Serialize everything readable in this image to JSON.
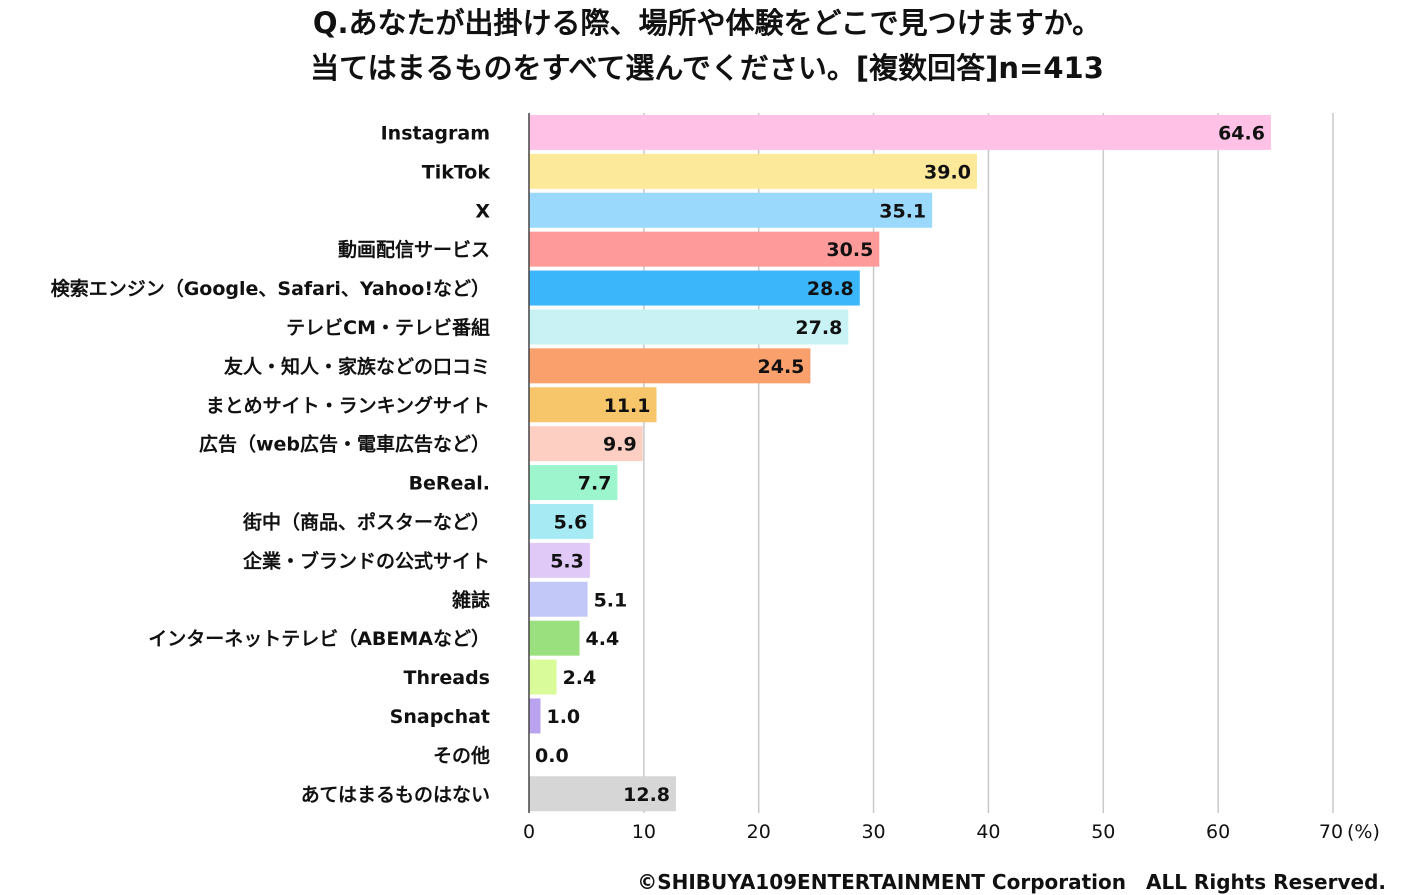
{
  "title": "Q.あなたが出掛ける際、場所や体験をどこで見つけますか。",
  "subtitle": "当てはまるものをすべて選んでください。[複数回答]n=413",
  "footer": "©SHIBUYA109ENTERTAINMENT Corporation　ALL Rights Reserved.",
  "chart_data": {
    "type": "bar",
    "orientation": "horizontal",
    "title": "Q.あなたが出掛ける際、場所や体験をどこで見つけますか。",
    "subtitle": "当てはまるものをすべて選んでください。[複数回答]n=413",
    "unit": "(%)",
    "xlim": [
      0,
      70
    ],
    "xticks": [
      0,
      10,
      20,
      30,
      40,
      50,
      60,
      70
    ],
    "grid": true,
    "categories": [
      "Instagram",
      "TikTok",
      "X",
      "動画配信サービス",
      "検索エンジン（Google、Safari、Yahoo!など）",
      "テレビCM・テレビ番組",
      "友人・知人・家族などの口コミ",
      "まとめサイト・ランキングサイト",
      "広告（web広告・電車広告など）",
      "BeReal.",
      "街中（商品、ポスターなど）",
      "企業・ブランドの公式サイト",
      "雑誌",
      "インターネットテレビ（ABEMAなど）",
      "Threads",
      "Snapchat",
      "その他",
      "あてはまるものはない"
    ],
    "values": [
      64.6,
      39.0,
      35.1,
      30.5,
      28.8,
      27.8,
      24.5,
      11.1,
      9.9,
      7.7,
      5.6,
      5.3,
      5.1,
      4.4,
      2.4,
      1.0,
      0.0,
      12.8
    ],
    "value_labels": [
      "64.6",
      "39.0",
      "35.1",
      "30.5",
      "28.8",
      "27.8",
      "24.5",
      "11.1",
      "9.9",
      "7.7",
      "5.6",
      "5.3",
      "5.1",
      "4.4",
      "2.4",
      "1.0",
      "0.0",
      "12.8"
    ],
    "colors": [
      "#ffc2e6",
      "#fde99a",
      "#9ad9fb",
      "#ff9a9a",
      "#3cb6fb",
      "#c8f2f4",
      "#f9a06c",
      "#f7c66a",
      "#fdcfc3",
      "#9cf5cd",
      "#a6eaf4",
      "#e0c9f6",
      "#c2c9f9",
      "#9be07e",
      "#d9fb9a",
      "#b9a3ee",
      "#cccccc",
      "#d6d6d6"
    ]
  }
}
